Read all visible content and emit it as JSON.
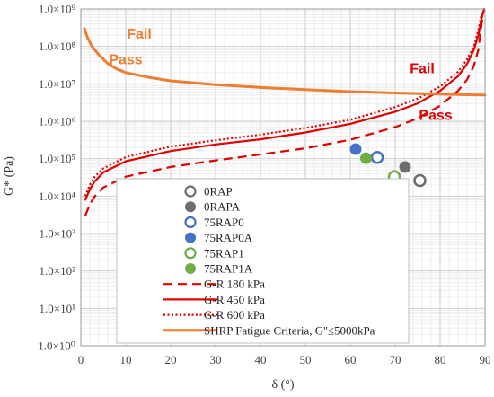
{
  "chart_data": {
    "type": "scatter",
    "xlabel": "δ (°)",
    "ylabel": "G* (Pa)",
    "xlim": [
      0,
      90
    ],
    "ylim_log10": [
      0,
      9
    ],
    "y_scale": "log",
    "grid": true,
    "x_ticks": [
      "0",
      "10",
      "20",
      "30",
      "40",
      "50",
      "60",
      "70",
      "80",
      "90"
    ],
    "y_ticks": [
      "1.0×10⁰",
      "1.0×10¹",
      "1.0×10²",
      "1.0×10³",
      "1.0×10⁴",
      "1.0×10⁵",
      "1.0×10⁶",
      "1.0×10⁷",
      "1.0×10⁸",
      "1.0×10⁹"
    ],
    "legend_position": "center",
    "annotations": [
      {
        "text": "Fail",
        "color": "#ED7D31",
        "x": 13,
        "y": 160000000.0
      },
      {
        "text": "Pass",
        "color": "#ED7D31",
        "x": 10,
        "y": 33000000.0
      },
      {
        "text": "Fail",
        "color": "#E00000",
        "x": 76,
        "y": 19000000.0
      },
      {
        "text": "Pass",
        "color": "#E00000",
        "x": 79,
        "y": 1100000.0
      }
    ],
    "series": [
      {
        "name": "0RAP",
        "kind": "marker",
        "color": "#6E6E6E",
        "fill": "hollow",
        "points": [
          [
            75.5,
            26000
          ]
        ]
      },
      {
        "name": "0RAPA",
        "kind": "marker",
        "color": "#6E6E6E",
        "fill": "solid",
        "points": [
          [
            72.2,
            60000
          ]
        ]
      },
      {
        "name": "75RAP0",
        "kind": "marker",
        "color": "#4472C4",
        "fill": "hollow",
        "points": [
          [
            66,
            108000
          ]
        ]
      },
      {
        "name": "75RAP0A",
        "kind": "marker",
        "color": "#4472C4",
        "fill": "solid",
        "points": [
          [
            61.2,
            180000
          ]
        ]
      },
      {
        "name": "75RAP1",
        "kind": "marker",
        "color": "#70AD47",
        "fill": "hollow",
        "points": [
          [
            69.8,
            33000
          ]
        ]
      },
      {
        "name": "75RAP1A",
        "kind": "marker",
        "color": "#70AD47",
        "fill": "solid",
        "points": [
          [
            63.5,
            103000
          ]
        ]
      },
      {
        "name": "G-R 180 kPa",
        "kind": "line",
        "dash": "dashed",
        "color": "#E00000",
        "points": [
          [
            1,
            3000
          ],
          [
            2,
            6000
          ],
          [
            3,
            9500
          ],
          [
            5,
            17000
          ],
          [
            10,
            33000
          ],
          [
            20,
            60000
          ],
          [
            30,
            90000
          ],
          [
            40,
            130000
          ],
          [
            50,
            190000
          ],
          [
            60,
            320000
          ],
          [
            70,
            700000
          ],
          [
            75,
            1200000
          ],
          [
            80,
            2600000
          ],
          [
            84,
            6500000
          ],
          [
            86,
            13000000
          ],
          [
            87.5,
            30000000
          ],
          [
            88.5,
            80000000
          ],
          [
            89.5,
            700000000
          ]
        ]
      },
      {
        "name": "G-R 450 kPa",
        "kind": "line",
        "dash": "solid",
        "color": "#E00000",
        "points": [
          [
            1,
            8000
          ],
          [
            2,
            15000
          ],
          [
            3,
            24000
          ],
          [
            5,
            43000
          ],
          [
            10,
            85000
          ],
          [
            20,
            160000
          ],
          [
            30,
            240000
          ],
          [
            40,
            330000
          ],
          [
            50,
            500000
          ],
          [
            60,
            850000
          ],
          [
            70,
            1800000
          ],
          [
            75,
            3000000
          ],
          [
            80,
            6500000
          ],
          [
            84,
            16000000
          ],
          [
            86,
            34000000
          ],
          [
            87.5,
            80000000
          ],
          [
            88.5,
            200000000
          ],
          [
            89.3,
            600000000
          ],
          [
            89.8,
            1000000000
          ]
        ]
      },
      {
        "name": "G-R 600 kPa",
        "kind": "line",
        "dash": "dotted",
        "color": "#E00000",
        "points": [
          [
            1,
            10000
          ],
          [
            2,
            20000
          ],
          [
            3,
            32000
          ],
          [
            5,
            55000
          ],
          [
            10,
            110000
          ],
          [
            20,
            210000
          ],
          [
            30,
            310000
          ],
          [
            40,
            440000
          ],
          [
            50,
            660000
          ],
          [
            60,
            1100000
          ],
          [
            70,
            2400000
          ],
          [
            75,
            4000000
          ],
          [
            80,
            8500000
          ],
          [
            84,
            21000000
          ],
          [
            86,
            45000000
          ],
          [
            87.5,
            100000000
          ],
          [
            88.5,
            270000000
          ],
          [
            89.3,
            800000000
          ]
        ]
      },
      {
        "name": "SHRP Fatigue Criteria, G''≤5000kPa",
        "kind": "line",
        "dash": "solid",
        "color": "#ED7D31",
        "points": [
          [
            0.8,
            300000000
          ],
          [
            1.5,
            170000000
          ],
          [
            2.5,
            100000000
          ],
          [
            4,
            60000000
          ],
          [
            6,
            35000000
          ],
          [
            8,
            25000000
          ],
          [
            10,
            20000000
          ],
          [
            15,
            15000000
          ],
          [
            20,
            12000000
          ],
          [
            30,
            9500000
          ],
          [
            40,
            8000000
          ],
          [
            50,
            7000000
          ],
          [
            60,
            6200000
          ],
          [
            70,
            5700000
          ],
          [
            80,
            5300000
          ],
          [
            90,
            5000000
          ]
        ]
      }
    ]
  }
}
